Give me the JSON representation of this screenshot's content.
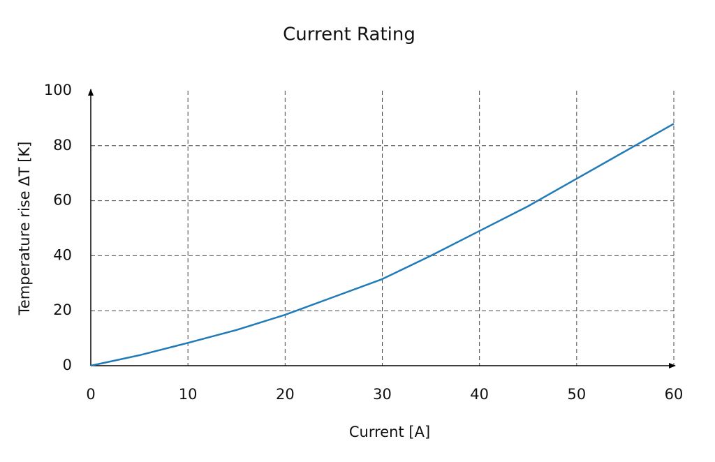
{
  "chart_data": {
    "type": "line",
    "title": "Current Rating",
    "x_label": "Current [A]",
    "y_label": "Temperature rise ΔT [K]",
    "x": [
      0,
      5,
      10,
      15,
      20,
      25,
      30,
      35,
      40,
      45,
      50,
      55,
      60
    ],
    "series": [
      {
        "name": "Temperature rise",
        "color": "#1f7ab8",
        "values": [
          0,
          3.8,
          8.3,
          13,
          18.5,
          25,
          31.5,
          40,
          49,
          58,
          68,
          78,
          88
        ]
      }
    ],
    "xlim": [
      0,
      60
    ],
    "xticks": [
      0,
      10,
      20,
      30,
      40,
      50,
      60
    ],
    "ylim": [
      0,
      100
    ],
    "yticks": [
      0,
      20,
      40,
      60,
      80,
      100
    ],
    "grid": true
  }
}
